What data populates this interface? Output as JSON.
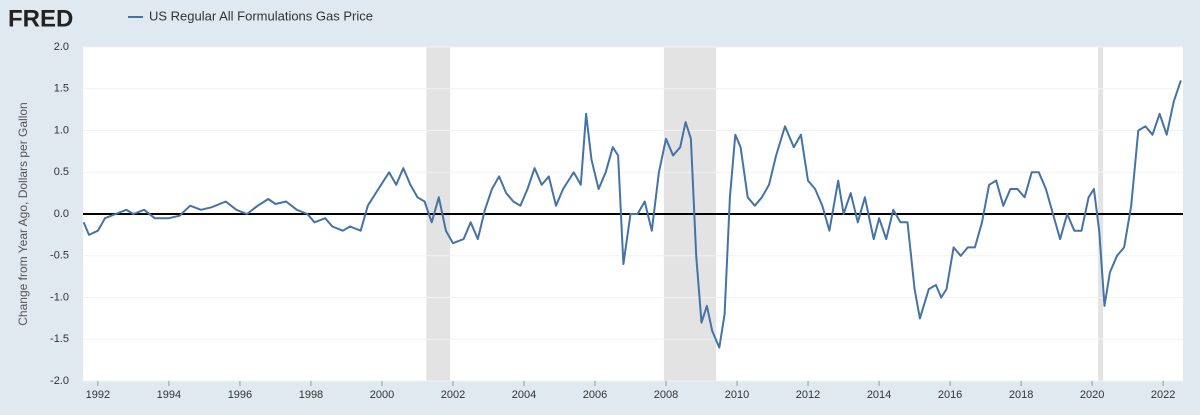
{
  "logo": "FRED",
  "chart_data": {
    "type": "line",
    "ylabel": "Change from Year Ago, Dollars per Gallon",
    "series": [
      {
        "name": "US Regular All Formulations Gas Price",
        "color": "#4572a7",
        "values": [
          -0.1,
          -0.25,
          -0.2,
          -0.05,
          0.0,
          0.05,
          0.0,
          0.05,
          -0.05,
          -0.05,
          -0.02,
          0.1,
          0.05,
          0.08,
          0.15,
          0.05,
          0.0,
          0.1,
          0.18,
          0.12,
          0.15,
          0.05,
          0.0,
          -0.1,
          -0.05,
          -0.15,
          -0.2,
          -0.15,
          -0.2,
          0.1,
          0.3,
          0.5,
          0.35,
          0.55,
          0.35,
          0.2,
          0.15,
          -0.1,
          0.2,
          -0.2,
          -0.35,
          -0.3,
          -0.1,
          -0.3,
          0.05,
          0.3,
          0.45,
          0.25,
          0.15,
          0.1,
          0.3,
          0.55,
          0.35,
          0.45,
          0.1,
          0.3,
          0.5,
          0.35,
          1.2,
          0.65,
          0.3,
          0.5,
          0.8,
          0.7,
          -0.6,
          0.0,
          0.0,
          0.15,
          -0.2,
          0.5,
          0.9,
          0.7,
          0.8,
          1.1,
          0.9,
          -0.5,
          -1.3,
          -1.1,
          -1.4,
          -1.6,
          -1.2,
          0.2,
          0.95,
          0.8,
          0.2,
          0.1,
          0.2,
          0.35,
          0.7,
          1.05,
          0.8,
          0.95,
          0.4,
          0.3,
          0.1,
          -0.2,
          0.4,
          0.0,
          0.25,
          -0.1,
          0.2,
          -0.3,
          -0.05,
          -0.3,
          0.05,
          -0.1,
          -0.1,
          -0.9,
          -1.25,
          -0.9,
          -0.85,
          -1.0,
          -0.9,
          -0.4,
          -0.5,
          -0.4,
          -0.4,
          -0.1,
          0.35,
          0.4,
          0.1,
          0.3,
          0.3,
          0.2,
          0.5,
          0.5,
          0.3,
          0.0,
          -0.3,
          0.0,
          -0.2,
          -0.2,
          0.2,
          0.3,
          -0.2,
          -1.1,
          -0.7,
          -0.5,
          -0.4,
          0.1,
          1.0,
          1.05,
          0.95,
          1.2,
          0.95,
          1.35,
          1.6
        ]
      }
    ],
    "x": [
      1991.6,
      1991.75,
      1992.0,
      1992.2,
      1992.5,
      1992.8,
      1993.0,
      1993.3,
      1993.6,
      1994.0,
      1994.3,
      1994.6,
      1994.9,
      1995.2,
      1995.6,
      1995.9,
      1996.2,
      1996.5,
      1996.8,
      1997.0,
      1997.3,
      1997.6,
      1997.9,
      1998.1,
      1998.4,
      1998.6,
      1998.9,
      1999.1,
      1999.4,
      1999.6,
      1999.9,
      2000.2,
      2000.4,
      2000.6,
      2000.8,
      2001.0,
      2001.2,
      2001.4,
      2001.6,
      2001.8,
      2002.0,
      2002.3,
      2002.5,
      2002.7,
      2002.9,
      2003.1,
      2003.3,
      2003.5,
      2003.7,
      2003.9,
      2004.1,
      2004.3,
      2004.5,
      2004.7,
      2004.9,
      2005.1,
      2005.4,
      2005.6,
      2005.75,
      2005.9,
      2006.1,
      2006.3,
      2006.5,
      2006.65,
      2006.8,
      2007.0,
      2007.2,
      2007.4,
      2007.6,
      2007.8,
      2008.0,
      2008.2,
      2008.4,
      2008.55,
      2008.7,
      2008.85,
      2009.0,
      2009.15,
      2009.3,
      2009.5,
      2009.65,
      2009.8,
      2009.95,
      2010.1,
      2010.3,
      2010.5,
      2010.7,
      2010.9,
      2011.1,
      2011.35,
      2011.6,
      2011.8,
      2012.0,
      2012.2,
      2012.4,
      2012.6,
      2012.85,
      2013.0,
      2013.2,
      2013.4,
      2013.6,
      2013.85,
      2014.0,
      2014.2,
      2014.4,
      2014.6,
      2014.8,
      2015.0,
      2015.15,
      2015.4,
      2015.6,
      2015.75,
      2015.9,
      2016.1,
      2016.3,
      2016.5,
      2016.7,
      2016.9,
      2017.1,
      2017.3,
      2017.5,
      2017.7,
      2017.9,
      2018.1,
      2018.3,
      2018.5,
      2018.7,
      2018.9,
      2019.1,
      2019.3,
      2019.5,
      2019.7,
      2019.9,
      2020.05,
      2020.2,
      2020.35,
      2020.5,
      2020.7,
      2020.9,
      2021.1,
      2021.3,
      2021.5,
      2021.7,
      2021.9,
      2022.1,
      2022.3,
      2022.5
    ],
    "recessions": [
      [
        2001.25,
        2001.92
      ],
      [
        2007.94,
        2009.41
      ],
      [
        2020.17,
        2020.31
      ]
    ],
    "xlim": [
      1991.58,
      2022.56
    ],
    "xticks": [
      1992,
      1994,
      1996,
      1998,
      2000,
      2002,
      2004,
      2006,
      2008,
      2010,
      2012,
      2014,
      2016,
      2018,
      2020,
      2022
    ],
    "ylim": [
      -2,
      2
    ],
    "yticks": [
      {
        "value": 2,
        "label": "2.0"
      },
      {
        "value": 1.5,
        "label": "1.5"
      },
      {
        "value": 1,
        "label": "1.0"
      },
      {
        "value": 0.5,
        "label": "0.5"
      },
      {
        "value": 0,
        "label": "0.0"
      },
      {
        "value": -0.5,
        "label": "-0.5"
      },
      {
        "value": -1,
        "label": "-1.0"
      },
      {
        "value": -1.5,
        "label": "-1.5"
      },
      {
        "value": -2,
        "label": "-2.0"
      }
    ],
    "grid": true
  }
}
